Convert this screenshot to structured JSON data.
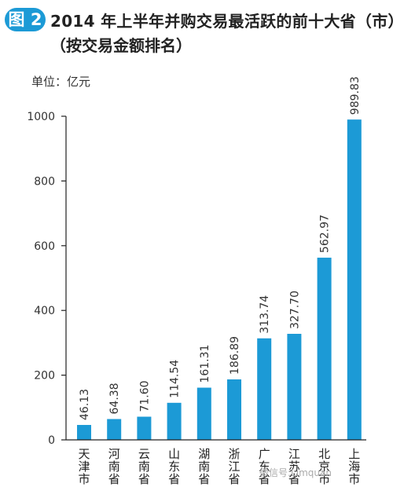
{
  "figure": {
    "badge": "图 2",
    "title_line1": "2014 年上半年并购交易最活跃的前十大省（市）",
    "title_line2": "（按交易金额排名）",
    "unit_label": "单位：亿元",
    "watermark": "微信号:Limquan"
  },
  "chart_data": {
    "type": "bar",
    "categories": [
      "天津市",
      "河南省",
      "云南省",
      "山东省",
      "湖南省",
      "浙江省",
      "广东省",
      "江苏省",
      "北京市",
      "上海市"
    ],
    "values": [
      46.13,
      64.38,
      71.6,
      114.54,
      161.31,
      186.89,
      313.74,
      327.7,
      562.97,
      989.83
    ],
    "value_labels": [
      "46.13",
      "64.38",
      "71.60",
      "114.54",
      "161.31",
      "186.89",
      "313.74",
      "327.70",
      "562.97",
      "989.83"
    ],
    "yticks": [
      0,
      200,
      400,
      600,
      800,
      1000
    ],
    "ylim": [
      0,
      1000
    ],
    "bar_color": "#1c9ad6",
    "grid": false
  }
}
